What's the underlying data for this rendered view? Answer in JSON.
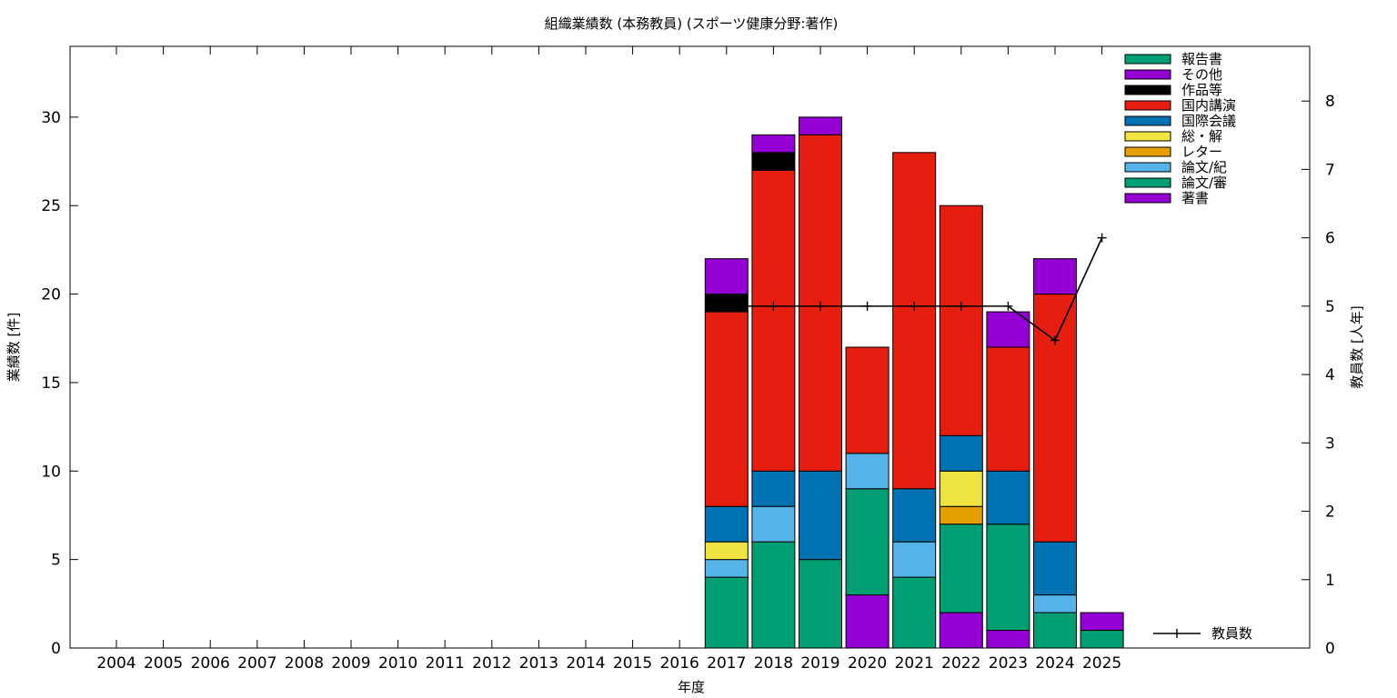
{
  "chart_data": {
    "type": "bar",
    "stacked": true,
    "title": "組織業績数 (本務教員) (スポーツ健康分野:著作)",
    "xlabel": "年度",
    "ylabel": "業績数 [件]",
    "y2label": "教員数 [人年]",
    "ylim": [
      0,
      34
    ],
    "y2lim": [
      0,
      8.8
    ],
    "yticks": [
      0,
      5,
      10,
      15,
      20,
      25,
      30
    ],
    "y2ticks": [
      0,
      1,
      2,
      3,
      4,
      5,
      6,
      7,
      8
    ],
    "categories": [
      "2004",
      "2005",
      "2006",
      "2007",
      "2008",
      "2009",
      "2010",
      "2011",
      "2012",
      "2013",
      "2014",
      "2015",
      "2016",
      "2017",
      "2018",
      "2019",
      "2020",
      "2021",
      "2022",
      "2023",
      "2024",
      "2025"
    ],
    "legend_position": "top-right",
    "grid": false,
    "series": [
      {
        "name": "著書",
        "color": "#9400d3",
        "values": [
          0,
          0,
          0,
          0,
          0,
          0,
          0,
          0,
          0,
          0,
          0,
          0,
          0,
          0,
          0,
          0,
          3,
          0,
          2,
          1,
          0,
          0
        ]
      },
      {
        "name": "論文/審",
        "color": "#009e73",
        "values": [
          0,
          0,
          0,
          0,
          0,
          0,
          0,
          0,
          0,
          0,
          0,
          0,
          0,
          4,
          6,
          5,
          6,
          4,
          5,
          6,
          2,
          1
        ]
      },
      {
        "name": "論文/紀",
        "color": "#56b4e9",
        "values": [
          0,
          0,
          0,
          0,
          0,
          0,
          0,
          0,
          0,
          0,
          0,
          0,
          0,
          1,
          2,
          0,
          2,
          2,
          0,
          0,
          1,
          0
        ]
      },
      {
        "name": "レター",
        "color": "#e69f00",
        "values": [
          0,
          0,
          0,
          0,
          0,
          0,
          0,
          0,
          0,
          0,
          0,
          0,
          0,
          0,
          0,
          0,
          0,
          0,
          1,
          0,
          0,
          0
        ]
      },
      {
        "name": "総・解",
        "color": "#f0e442",
        "values": [
          0,
          0,
          0,
          0,
          0,
          0,
          0,
          0,
          0,
          0,
          0,
          0,
          0,
          1,
          0,
          0,
          0,
          0,
          2,
          0,
          0,
          0
        ]
      },
      {
        "name": "国際会議",
        "color": "#0072b2",
        "values": [
          0,
          0,
          0,
          0,
          0,
          0,
          0,
          0,
          0,
          0,
          0,
          0,
          0,
          2,
          2,
          5,
          0,
          3,
          2,
          3,
          3,
          0
        ]
      },
      {
        "name": "国内講演",
        "color": "#e51e10",
        "values": [
          0,
          0,
          0,
          0,
          0,
          0,
          0,
          0,
          0,
          0,
          0,
          0,
          0,
          11,
          17,
          19,
          6,
          19,
          13,
          7,
          14,
          0
        ]
      },
      {
        "name": "作品等",
        "color": "#000000",
        "values": [
          0,
          0,
          0,
          0,
          0,
          0,
          0,
          0,
          0,
          0,
          0,
          0,
          0,
          1,
          1,
          0,
          0,
          0,
          0,
          0,
          0,
          0
        ]
      },
      {
        "name": "その他",
        "color": "#9400d3",
        "values": [
          0,
          0,
          0,
          0,
          0,
          0,
          0,
          0,
          0,
          0,
          0,
          0,
          0,
          2,
          1,
          1,
          0,
          0,
          0,
          2,
          2,
          1
        ]
      },
      {
        "name": "報告書",
        "color": "#009e73",
        "values": [
          0,
          0,
          0,
          0,
          0,
          0,
          0,
          0,
          0,
          0,
          0,
          0,
          0,
          0,
          0,
          0,
          0,
          0,
          0,
          0,
          0,
          0
        ]
      }
    ],
    "line_series": {
      "name": "教員数",
      "color": "#000000",
      "axis": "y2",
      "x": [
        "2017",
        "2018",
        "2019",
        "2020",
        "2021",
        "2022",
        "2023",
        "2024",
        "2025"
      ],
      "values": [
        5,
        5,
        5,
        5,
        5,
        5,
        5,
        4.5,
        6
      ]
    }
  }
}
